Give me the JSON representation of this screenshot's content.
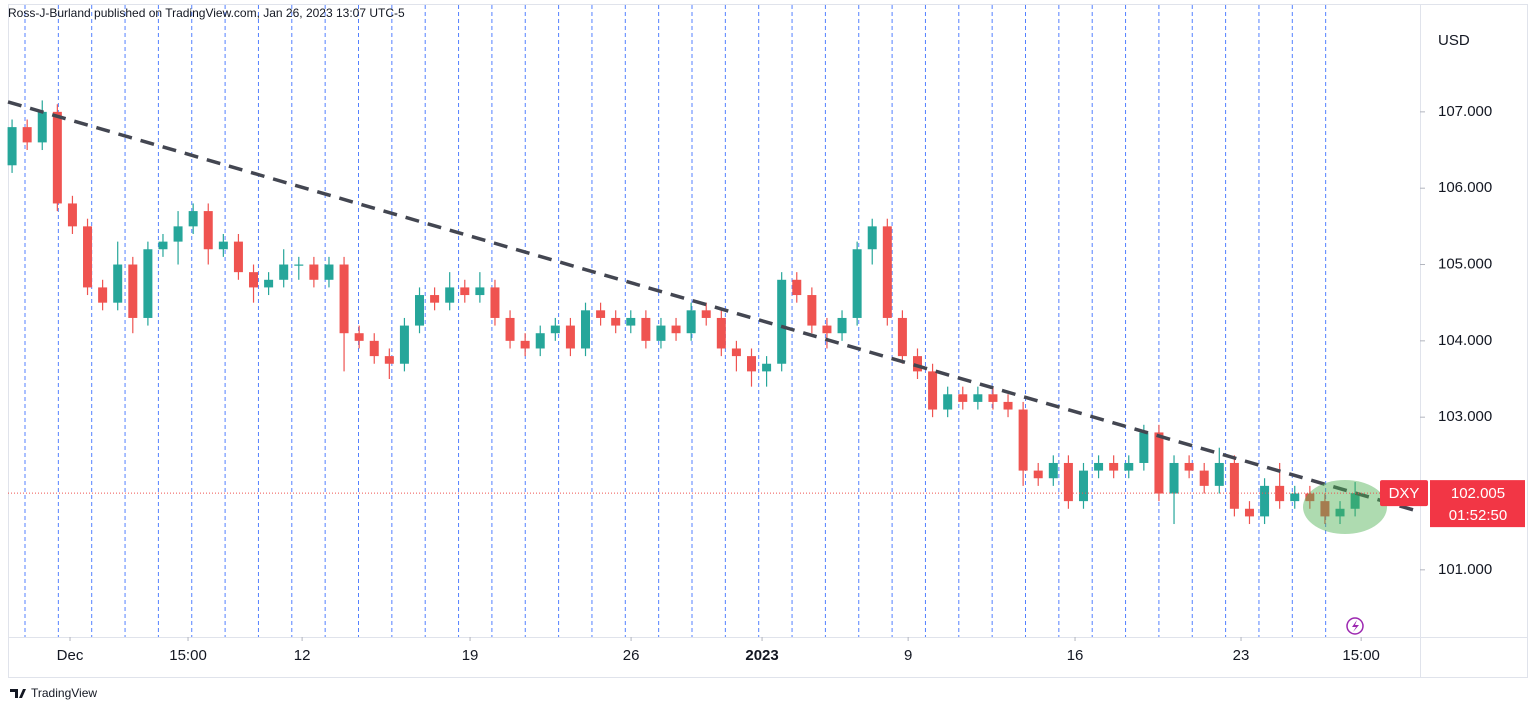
{
  "chart_data": {
    "type": "candlestick",
    "header": "Ross-J-Burland published on TradingView.com, Jan 26, 2023 13:07 UTC-5",
    "y_axis_label": "USD",
    "brand": "TradingView",
    "x": [
      0,
      1,
      2,
      3,
      4,
      5,
      6,
      7,
      8,
      9,
      10,
      11,
      12,
      13,
      14,
      15,
      16,
      17,
      18,
      19,
      20,
      21,
      22,
      23,
      24,
      25,
      26,
      27,
      28,
      29,
      30,
      31,
      32,
      33,
      34,
      35,
      36,
      37,
      38,
      39,
      40,
      41,
      42,
      43,
      44,
      45,
      46,
      47,
      48,
      49,
      50,
      51,
      52,
      53,
      54,
      55,
      56,
      57,
      58,
      59,
      60,
      61,
      62,
      63,
      64,
      65,
      66,
      67,
      68,
      69,
      70,
      71,
      72,
      73,
      74,
      75,
      76,
      77,
      78,
      79,
      80,
      81,
      82,
      83,
      84,
      85,
      86,
      87,
      88,
      89
    ],
    "open": [
      106.3,
      106.8,
      106.6,
      107.0,
      105.8,
      105.5,
      104.7,
      104.5,
      105.0,
      104.3,
      105.2,
      105.3,
      105.5,
      105.7,
      105.2,
      105.3,
      104.9,
      104.7,
      104.8,
      105.0,
      105.0,
      104.8,
      105.0,
      104.1,
      104.0,
      103.8,
      103.7,
      104.2,
      104.6,
      104.5,
      104.7,
      104.6,
      104.7,
      104.3,
      104.0,
      103.9,
      104.1,
      104.2,
      103.9,
      104.4,
      104.3,
      104.2,
      104.3,
      104.0,
      104.2,
      104.1,
      104.4,
      104.3,
      103.9,
      103.8,
      103.6,
      103.7,
      104.8,
      104.6,
      104.2,
      104.1,
      104.3,
      105.2,
      105.5,
      104.3,
      103.8,
      103.6,
      103.1,
      103.3,
      103.2,
      103.3,
      103.2,
      103.1,
      102.3,
      102.2,
      102.4,
      101.9,
      102.3,
      102.4,
      102.3,
      102.4,
      102.8,
      102.0,
      102.4,
      102.3,
      102.1,
      102.4,
      101.8,
      101.7,
      102.1,
      101.9,
      102.0,
      101.9,
      101.7,
      101.8
    ],
    "high": [
      106.9,
      106.9,
      107.15,
      107.1,
      105.9,
      105.6,
      104.8,
      105.3,
      105.1,
      105.3,
      105.4,
      105.7,
      105.8,
      105.8,
      105.4,
      105.4,
      105.0,
      104.9,
      105.2,
      105.1,
      105.1,
      105.1,
      105.1,
      104.2,
      104.1,
      103.9,
      104.3,
      104.7,
      104.7,
      104.9,
      104.8,
      104.9,
      104.8,
      104.4,
      104.1,
      104.2,
      104.3,
      104.3,
      104.5,
      104.5,
      104.4,
      104.4,
      104.4,
      104.3,
      104.3,
      104.5,
      104.5,
      104.4,
      104.0,
      103.9,
      103.8,
      104.9,
      104.9,
      104.7,
      104.3,
      104.4,
      105.3,
      105.6,
      105.6,
      104.4,
      103.9,
      103.7,
      103.4,
      103.4,
      103.4,
      103.4,
      103.3,
      103.2,
      102.4,
      102.5,
      102.5,
      102.4,
      102.5,
      102.5,
      102.5,
      102.9,
      102.9,
      102.5,
      102.5,
      102.4,
      102.6,
      102.5,
      101.9,
      102.2,
      102.4,
      102.1,
      102.1,
      102.0,
      101.9,
      102.15
    ],
    "low": [
      106.2,
      106.5,
      106.5,
      105.7,
      105.4,
      104.6,
      104.4,
      104.4,
      104.1,
      104.2,
      105.1,
      105.0,
      105.4,
      105.0,
      105.1,
      104.8,
      104.5,
      104.6,
      104.7,
      104.8,
      104.7,
      104.7,
      103.6,
      103.9,
      103.7,
      103.5,
      103.6,
      104.1,
      104.4,
      104.4,
      104.5,
      104.5,
      104.2,
      103.9,
      103.8,
      103.8,
      104.0,
      103.8,
      103.8,
      104.2,
      104.1,
      104.1,
      103.9,
      103.9,
      104.0,
      104.0,
      104.2,
      103.8,
      103.6,
      103.4,
      103.4,
      103.6,
      104.5,
      104.1,
      103.9,
      104.0,
      104.2,
      105.0,
      104.2,
      103.7,
      103.5,
      103.0,
      103.0,
      103.1,
      103.1,
      103.1,
      103.0,
      102.1,
      102.1,
      102.1,
      101.8,
      101.8,
      102.2,
      102.2,
      102.2,
      102.3,
      101.9,
      101.6,
      102.2,
      102.0,
      102.0,
      101.7,
      101.6,
      101.6,
      101.8,
      101.8,
      101.8,
      101.6,
      101.6,
      101.7
    ],
    "close": [
      106.8,
      106.6,
      107.0,
      105.8,
      105.5,
      104.7,
      104.5,
      105.0,
      104.3,
      105.2,
      105.3,
      105.5,
      105.7,
      105.2,
      105.3,
      104.9,
      104.7,
      104.8,
      105.0,
      105.0,
      104.8,
      105.0,
      104.1,
      104.0,
      103.8,
      103.7,
      104.2,
      104.6,
      104.5,
      104.7,
      104.6,
      104.7,
      104.3,
      104.0,
      103.9,
      104.1,
      104.2,
      103.9,
      104.4,
      104.3,
      104.2,
      104.3,
      104.0,
      104.2,
      104.1,
      104.4,
      104.3,
      103.9,
      103.8,
      103.6,
      103.7,
      104.8,
      104.6,
      104.2,
      104.1,
      104.3,
      105.2,
      105.5,
      104.3,
      103.8,
      103.6,
      103.1,
      103.3,
      103.2,
      103.3,
      103.2,
      103.1,
      102.3,
      102.2,
      102.4,
      101.9,
      102.3,
      102.4,
      102.3,
      102.4,
      102.8,
      102.0,
      102.4,
      102.3,
      102.1,
      102.4,
      101.8,
      101.7,
      102.1,
      101.9,
      102.0,
      101.9,
      101.7,
      101.8,
      102.005
    ],
    "up_color": "#26a69a",
    "down_color": "#ef5350",
    "xlim": [
      -0.27,
      93.3
    ],
    "xticks": [
      {
        "value": 3.84,
        "label": "Dec"
      },
      {
        "value": 11.66,
        "label": "15:00"
      },
      {
        "value": 19.22,
        "label": "12"
      },
      {
        "value": 30.35,
        "label": "19"
      },
      {
        "value": 41.02,
        "label": "26"
      },
      {
        "value": 49.7,
        "label": "2023"
      },
      {
        "value": 59.38,
        "label": "9"
      },
      {
        "value": 70.44,
        "label": "16"
      },
      {
        "value": 81.44,
        "label": "23"
      },
      {
        "value": 89.4,
        "label": "15:00"
      }
    ],
    "ylim": [
      100.12,
      108.4
    ],
    "yticks": [
      {
        "value": 101,
        "label": "101.000"
      },
      {
        "value": 102,
        "label": "102.000"
      },
      {
        "value": 103,
        "label": "103.000"
      },
      {
        "value": 104,
        "label": "104.000"
      },
      {
        "value": 105,
        "label": "105.000"
      },
      {
        "value": 106,
        "label": "106.000"
      },
      {
        "value": 107,
        "label": "107.000"
      }
    ],
    "trendline": {
      "x": [
        -0.27,
        93.3
      ],
      "y": [
        107.13,
        101.76
      ]
    },
    "last_price": {
      "symbol": "DXY",
      "value": 102.005,
      "countdown": "01:52:50"
    }
  }
}
